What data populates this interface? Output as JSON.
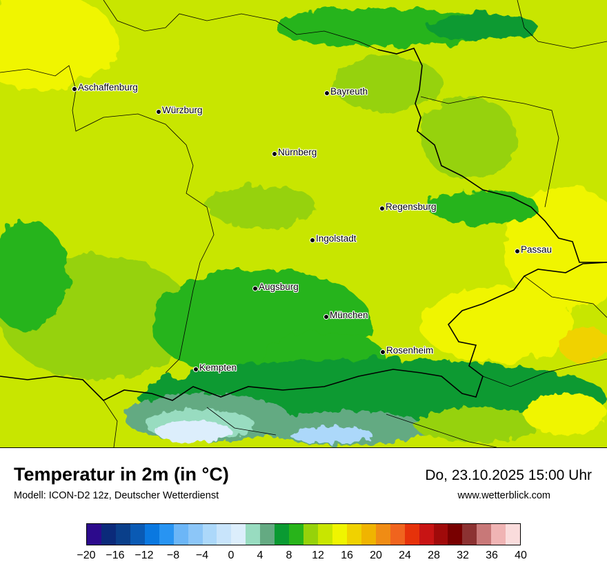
{
  "map": {
    "title": "Temperatur in 2m (in °C)",
    "subtitle": "Modell: ICON-D2 12z, Deutscher Wetterdienst",
    "datetime": "Do, 23.10.2025 15:00 Uhr",
    "website": "www.wetterblick.com",
    "cities": [
      {
        "name": "Aschaffenburg"
      },
      {
        "name": "Würzburg"
      },
      {
        "name": "Bayreuth"
      },
      {
        "name": "Nürnberg"
      },
      {
        "name": "Regensburg"
      },
      {
        "name": "Ingolstadt"
      },
      {
        "name": "Passau"
      },
      {
        "name": "Augsburg"
      },
      {
        "name": "München"
      },
      {
        "name": "Rosenheim"
      },
      {
        "name": "Kempten"
      }
    ]
  },
  "legend": {
    "tick_labels": [
      "−20",
      "−16",
      "−12",
      "−8",
      "−4",
      "0",
      "4",
      "8",
      "12",
      "16",
      "20",
      "24",
      "28",
      "32",
      "36",
      "40"
    ],
    "colors": [
      "#2c0a8c",
      "#0b2a7a",
      "#0a3f8a",
      "#0a5ab4",
      "#0a78e0",
      "#2894f2",
      "#6cb6f7",
      "#8cc6f8",
      "#acd8fa",
      "#c8e4fb",
      "#dceefc",
      "#98dcc0",
      "#64aa82",
      "#0a9a32",
      "#28b41a",
      "#96d20a",
      "#c8e600",
      "#f0f500",
      "#f0d200",
      "#f0b400",
      "#f08c14",
      "#f0641e",
      "#e6320a",
      "#c81414",
      "#a00a0a",
      "#780000",
      "#8c3232",
      "#c87878",
      "#f0b4b4",
      "#fadcdc"
    ]
  }
}
